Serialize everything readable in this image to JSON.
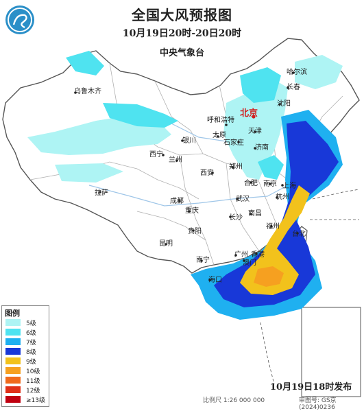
{
  "title": "全国大风预报图",
  "period": "10月19日20时-20日20时",
  "agency": "中央气象台",
  "issued": "10月19日18时发布",
  "scale": "比例尺 1:26 000 000",
  "review_number": "审图号: GS京(2024)0236",
  "cities": {
    "urumqi": "乌鲁木齐",
    "harbin": "哈尔滨",
    "changchun": "长春",
    "shenyang": "沈阳",
    "hohhot": "呼和浩特",
    "beijing": "北京",
    "tianjin": "天津",
    "taiyuan": "太原",
    "shijiazhuang": "石家庄",
    "yinchuan": "银川",
    "jinan": "济南",
    "xining": "西宁",
    "lanzhou": "兰州",
    "zhengzhou": "郑州",
    "xian": "西安",
    "hefei": "合肥",
    "nanjing": "南京",
    "shanghai": "上海",
    "lhasa": "拉萨",
    "chengdu": "成都",
    "wuhan": "武汉",
    "hangzhou": "杭州",
    "chongqing": "重庆",
    "nanchang": "南昌",
    "changsha": "长沙",
    "guiyang": "贵阳",
    "fuzhou": "福州",
    "taipei": "台北",
    "kunming": "昆明",
    "guangzhou": "广州",
    "hongkong": "香港",
    "macau": "澳门",
    "nanning": "南宁",
    "haikou": "海口"
  },
  "legend": {
    "title": "图例",
    "items": [
      {
        "label": "5级",
        "color": "#aef4f4"
      },
      {
        "label": "6级",
        "color": "#4fe3f0"
      },
      {
        "label": "7级",
        "color": "#1fb0f0"
      },
      {
        "label": "8级",
        "color": "#1838d8"
      },
      {
        "label": "9级",
        "color": "#f2c21c"
      },
      {
        "label": "10级",
        "color": "#f6a020"
      },
      {
        "label": "11级",
        "color": "#f06a1c"
      },
      {
        "label": "12级",
        "color": "#e03018"
      },
      {
        "label": "≥13级",
        "color": "#c00010"
      }
    ]
  },
  "colors": {
    "land": "#ffffff",
    "sea": "#ffffff",
    "border": "#555555",
    "province": "#b0b0b0",
    "river": "#9fc6e8"
  }
}
